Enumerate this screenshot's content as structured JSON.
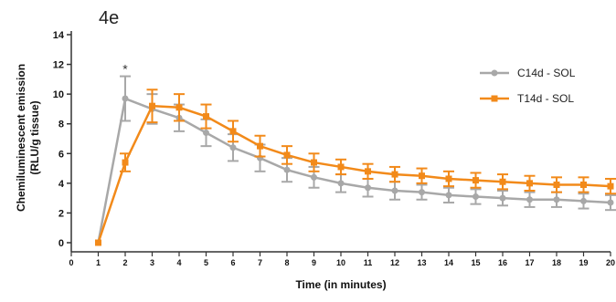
{
  "panel_label": "4e",
  "chart_data": {
    "type": "line",
    "title": "",
    "xlabel": "Time (in minutes)",
    "ylabel_line1": "Chemiluminescent emission",
    "ylabel_line2": "(RLU/g tissue)",
    "xlim": [
      0,
      20
    ],
    "ylim": [
      0,
      14
    ],
    "x": [
      1,
      2,
      3,
      4,
      5,
      6,
      7,
      8,
      9,
      10,
      11,
      12,
      13,
      14,
      15,
      16,
      17,
      18,
      19,
      20
    ],
    "xticks": [
      0,
      1,
      2,
      3,
      4,
      5,
      6,
      7,
      8,
      9,
      10,
      11,
      12,
      13,
      14,
      15,
      16,
      17,
      18,
      19,
      20
    ],
    "yticks": [
      0,
      2,
      4,
      6,
      8,
      10,
      12,
      14
    ],
    "annotation": {
      "text": "*",
      "x": 2,
      "y": 11.4
    },
    "legend_position": "top-right",
    "grid": false,
    "series": [
      {
        "name": "C14d - SOL",
        "color": "#a8a8a8",
        "marker": "circle",
        "values": [
          0,
          9.7,
          9.0,
          8.4,
          7.4,
          6.4,
          5.7,
          4.9,
          4.4,
          4.0,
          3.7,
          3.5,
          3.4,
          3.2,
          3.1,
          3.0,
          2.9,
          2.9,
          2.8,
          2.7
        ],
        "errors": [
          0,
          1.5,
          1.0,
          0.9,
          0.9,
          0.9,
          0.9,
          0.8,
          0.7,
          0.6,
          0.6,
          0.6,
          0.5,
          0.5,
          0.5,
          0.5,
          0.5,
          0.5,
          0.5,
          0.5
        ]
      },
      {
        "name": "T14d - SOL",
        "color": "#f28a1a",
        "marker": "square",
        "values": [
          0,
          5.4,
          9.2,
          9.1,
          8.5,
          7.5,
          6.5,
          5.9,
          5.4,
          5.1,
          4.8,
          4.6,
          4.5,
          4.3,
          4.2,
          4.1,
          4.0,
          3.9,
          3.9,
          3.8
        ],
        "errors": [
          0,
          0.6,
          1.1,
          0.9,
          0.8,
          0.7,
          0.7,
          0.6,
          0.6,
          0.5,
          0.5,
          0.5,
          0.5,
          0.5,
          0.5,
          0.5,
          0.5,
          0.5,
          0.5,
          0.5
        ]
      }
    ]
  }
}
